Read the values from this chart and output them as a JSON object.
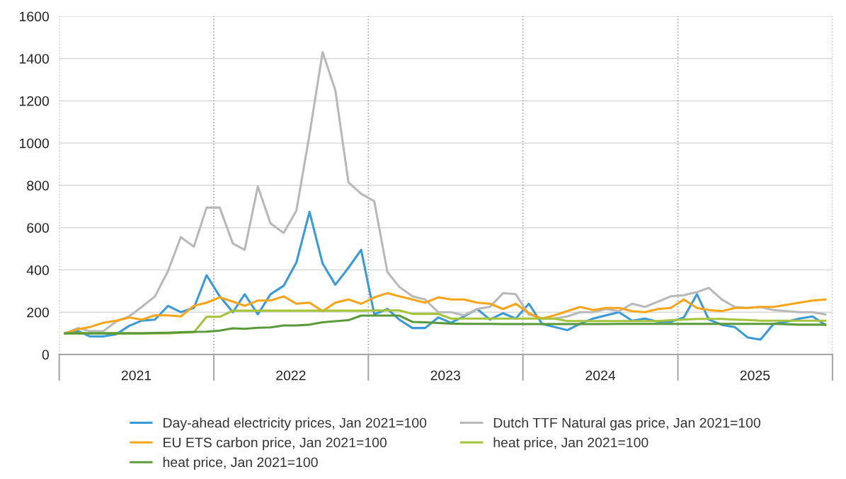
{
  "chart_data": {
    "type": "line",
    "x": [
      "2021-01-15",
      "2021-02-15",
      "2021-03-15",
      "2021-04-15",
      "2021-05-15",
      "2021-06-15",
      "2021-07-15",
      "2021-08-15",
      "2021-09-15",
      "2021-10-15",
      "2021-11-15",
      "2021-12-15",
      "2022-01-15",
      "2022-02-15",
      "2022-03-15",
      "2022-04-15",
      "2022-05-15",
      "2022-06-15",
      "2022-07-15",
      "2022-08-15",
      "2022-09-15",
      "2022-10-15",
      "2022-11-15",
      "2022-12-15",
      "2023-01-15",
      "2023-02-15",
      "2023-03-15",
      "2023-04-15",
      "2023-05-15",
      "2023-06-15",
      "2023-07-15",
      "2023-08-15",
      "2023-09-15",
      "2023-10-15",
      "2023-11-15",
      "2023-12-15",
      "2024-01-15",
      "2024-02-15",
      "2024-03-15",
      "2024-04-15",
      "2024-05-15",
      "2024-06-15",
      "2024-07-15",
      "2024-08-15",
      "2024-09-15",
      "2024-10-15",
      "2024-11-15",
      "2024-12-15",
      "2025-01-15",
      "2025-02-15",
      "2025-03-15",
      "2025-04-15",
      "2025-05-15",
      "2025-06-15",
      "2025-07-15",
      "2025-08-15",
      "2025-09-15",
      "2025-10-15",
      "2025-11-15",
      "2025-12-15"
    ],
    "series": [
      {
        "name": "Day-ahead electricity prices, Jan 2021=100",
        "color": "#3a9ad9",
        "values": [
          100,
          110,
          85,
          85,
          95,
          135,
          160,
          165,
          230,
          200,
          220,
          375,
          275,
          200,
          285,
          190,
          285,
          325,
          435,
          675,
          430,
          330,
          410,
          495,
          190,
          215,
          165,
          125,
          125,
          175,
          150,
          180,
          215,
          165,
          195,
          170,
          240,
          145,
          130,
          115,
          145,
          170,
          185,
          200,
          160,
          170,
          155,
          155,
          175,
          285,
          165,
          140,
          130,
          80,
          70,
          145,
          155,
          170,
          180,
          140
        ]
      },
      {
        "name": "Dutch TTF Natural gas price, Jan 2021=100",
        "color": "#b7b8ba",
        "values": [
          100,
          125,
          110,
          110,
          155,
          180,
          225,
          275,
          395,
          555,
          510,
          695,
          695,
          525,
          495,
          795,
          620,
          575,
          680,
          1040,
          1430,
          1250,
          815,
          760,
          725,
          390,
          320,
          275,
          260,
          200,
          200,
          185,
          215,
          225,
          290,
          285,
          190,
          170,
          170,
          180,
          200,
          200,
          215,
          205,
          240,
          225,
          250,
          275,
          280,
          295,
          315,
          260,
          225,
          220,
          225,
          210,
          205,
          200,
          200,
          190
        ]
      },
      {
        "name": "EU ETS carbon price, Jan 2021=100",
        "color": "#f9a51b",
        "values": [
          100,
          120,
          130,
          150,
          160,
          175,
          165,
          185,
          185,
          180,
          230,
          245,
          270,
          250,
          230,
          255,
          255,
          275,
          240,
          245,
          205,
          245,
          260,
          240,
          270,
          290,
          275,
          260,
          245,
          270,
          260,
          260,
          245,
          240,
          215,
          240,
          195,
          170,
          185,
          205,
          225,
          210,
          220,
          220,
          205,
          200,
          215,
          220,
          260,
          220,
          210,
          205,
          220,
          220,
          225,
          225,
          235,
          245,
          255,
          260
        ]
      },
      {
        "name": "heat price, Jan 2021=100",
        "color": "#a5c33b",
        "values": [
          100,
          100,
          100,
          100,
          100,
          100,
          100,
          100,
          100,
          103,
          105,
          178,
          178,
          207,
          207,
          207,
          207,
          207,
          207,
          207,
          207,
          207,
          207,
          207,
          208,
          208,
          208,
          192,
          192,
          192,
          170,
          170,
          170,
          170,
          170,
          170,
          170,
          170,
          170,
          158,
          158,
          158,
          158,
          158,
          158,
          158,
          158,
          162,
          165,
          168,
          168,
          168,
          165,
          163,
          160,
          160,
          160,
          160,
          160,
          160
        ]
      },
      {
        "name": "heat price, Jan 2021=100",
        "color": "#5b9a3a",
        "values": [
          100,
          100,
          100,
          100,
          100,
          100,
          100,
          102,
          103,
          105,
          107,
          108,
          113,
          124,
          121,
          126,
          128,
          137,
          137,
          141,
          152,
          157,
          162,
          184,
          184,
          184,
          184,
          154,
          152,
          149,
          146,
          145,
          145,
          145,
          144,
          144,
          144,
          144,
          144,
          144,
          144,
          144,
          144,
          145,
          145,
          145,
          145,
          145,
          145,
          145,
          145,
          145,
          145,
          145,
          145,
          145,
          143,
          141,
          141,
          141
        ]
      }
    ],
    "xlim": [
      "2021-01-01",
      "2026-01-01"
    ],
    "xticks": [
      {
        "value": "2021-07-02",
        "label": "2021"
      },
      {
        "value": "2022-07-02",
        "label": "2022"
      },
      {
        "value": "2023-07-02",
        "label": "2023"
      },
      {
        "value": "2024-07-02",
        "label": "2024"
      },
      {
        "value": "2025-07-02",
        "label": "2025"
      }
    ],
    "ylim": [
      0,
      1600
    ],
    "yticks": [
      0,
      200,
      400,
      600,
      800,
      1000,
      1200,
      1400,
      1600
    ],
    "ref_lines": [
      {
        "axis": "x",
        "value": "2021-01-01",
        "color": "#a6a6a6",
        "line_style": "dotted"
      },
      {
        "axis": "x",
        "value": "2022-01-01",
        "color": "#a6a6a6",
        "line_style": "dotted"
      },
      {
        "axis": "x",
        "value": "2023-01-01",
        "color": "#a6a6a6",
        "line_style": "dotted"
      },
      {
        "axis": "x",
        "value": "2024-01-01",
        "color": "#a6a6a6",
        "line_style": "dotted"
      },
      {
        "axis": "x",
        "value": "2025-01-01",
        "color": "#a6a6a6",
        "line_style": "dotted"
      },
      {
        "axis": "x",
        "value": "2026-01-01",
        "color": "#a6a6a6",
        "line_style": "dotted"
      }
    ],
    "grid": "y",
    "legend": "bottom",
    "marker": "none",
    "line_style": "solid"
  }
}
